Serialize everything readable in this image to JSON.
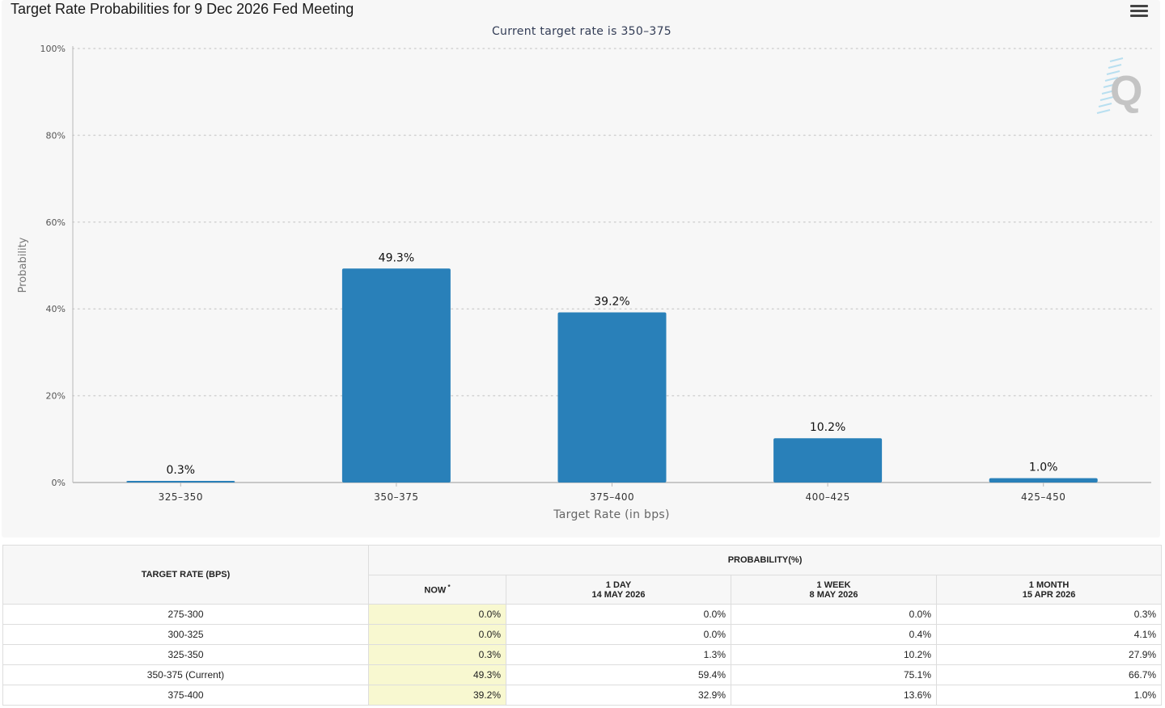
{
  "title": "Target Rate Probabilities for 9 Dec 2026 Fed Meeting",
  "chart_data": {
    "type": "bar",
    "title": "Target Rate Probabilities for 9 Dec 2026 Fed Meeting",
    "subtitle": "Current target rate is 350-375",
    "xlabel": "Target Rate (in bps)",
    "ylabel": "Probability",
    "categories": [
      "325-350",
      "350-375",
      "375-400",
      "400-425",
      "425-450"
    ],
    "values": [
      0.3,
      49.3,
      39.2,
      10.2,
      1.0
    ],
    "data_labels": [
      "0.3%",
      "49.3%",
      "39.2%",
      "10.2%",
      "1.0%"
    ],
    "ylim": [
      0,
      100
    ],
    "yticks": [
      0,
      20,
      40,
      60,
      80,
      100
    ],
    "ytick_labels": [
      "0%",
      "20%",
      "40%",
      "60%",
      "80%",
      "100%"
    ],
    "grid": true,
    "bar_color": "#2980b9"
  },
  "table": {
    "rate_header": "TARGET RATE (BPS)",
    "prob_header": "PROBABILITY(%)",
    "columns": [
      {
        "line1": "NOW",
        "line2": "",
        "sup": "*"
      },
      {
        "line1": "1 DAY",
        "line2": "14 MAY 2026",
        "sup": ""
      },
      {
        "line1": "1 WEEK",
        "line2": "8 MAY 2026",
        "sup": ""
      },
      {
        "line1": "1 MONTH",
        "line2": "15 APR 2026",
        "sup": ""
      }
    ],
    "rows": [
      {
        "rate": "275-300",
        "values": [
          "0.0%",
          "0.0%",
          "0.0%",
          "0.3%"
        ]
      },
      {
        "rate": "300-325",
        "values": [
          "0.0%",
          "0.0%",
          "0.4%",
          "4.1%"
        ]
      },
      {
        "rate": "325-350",
        "values": [
          "0.3%",
          "1.3%",
          "10.2%",
          "27.9%"
        ]
      },
      {
        "rate": "350-375 (Current)",
        "values": [
          "49.3%",
          "59.4%",
          "75.1%",
          "66.7%"
        ]
      },
      {
        "rate": "375-400",
        "values": [
          "39.2%",
          "32.9%",
          "13.6%",
          "1.0%"
        ]
      }
    ]
  }
}
